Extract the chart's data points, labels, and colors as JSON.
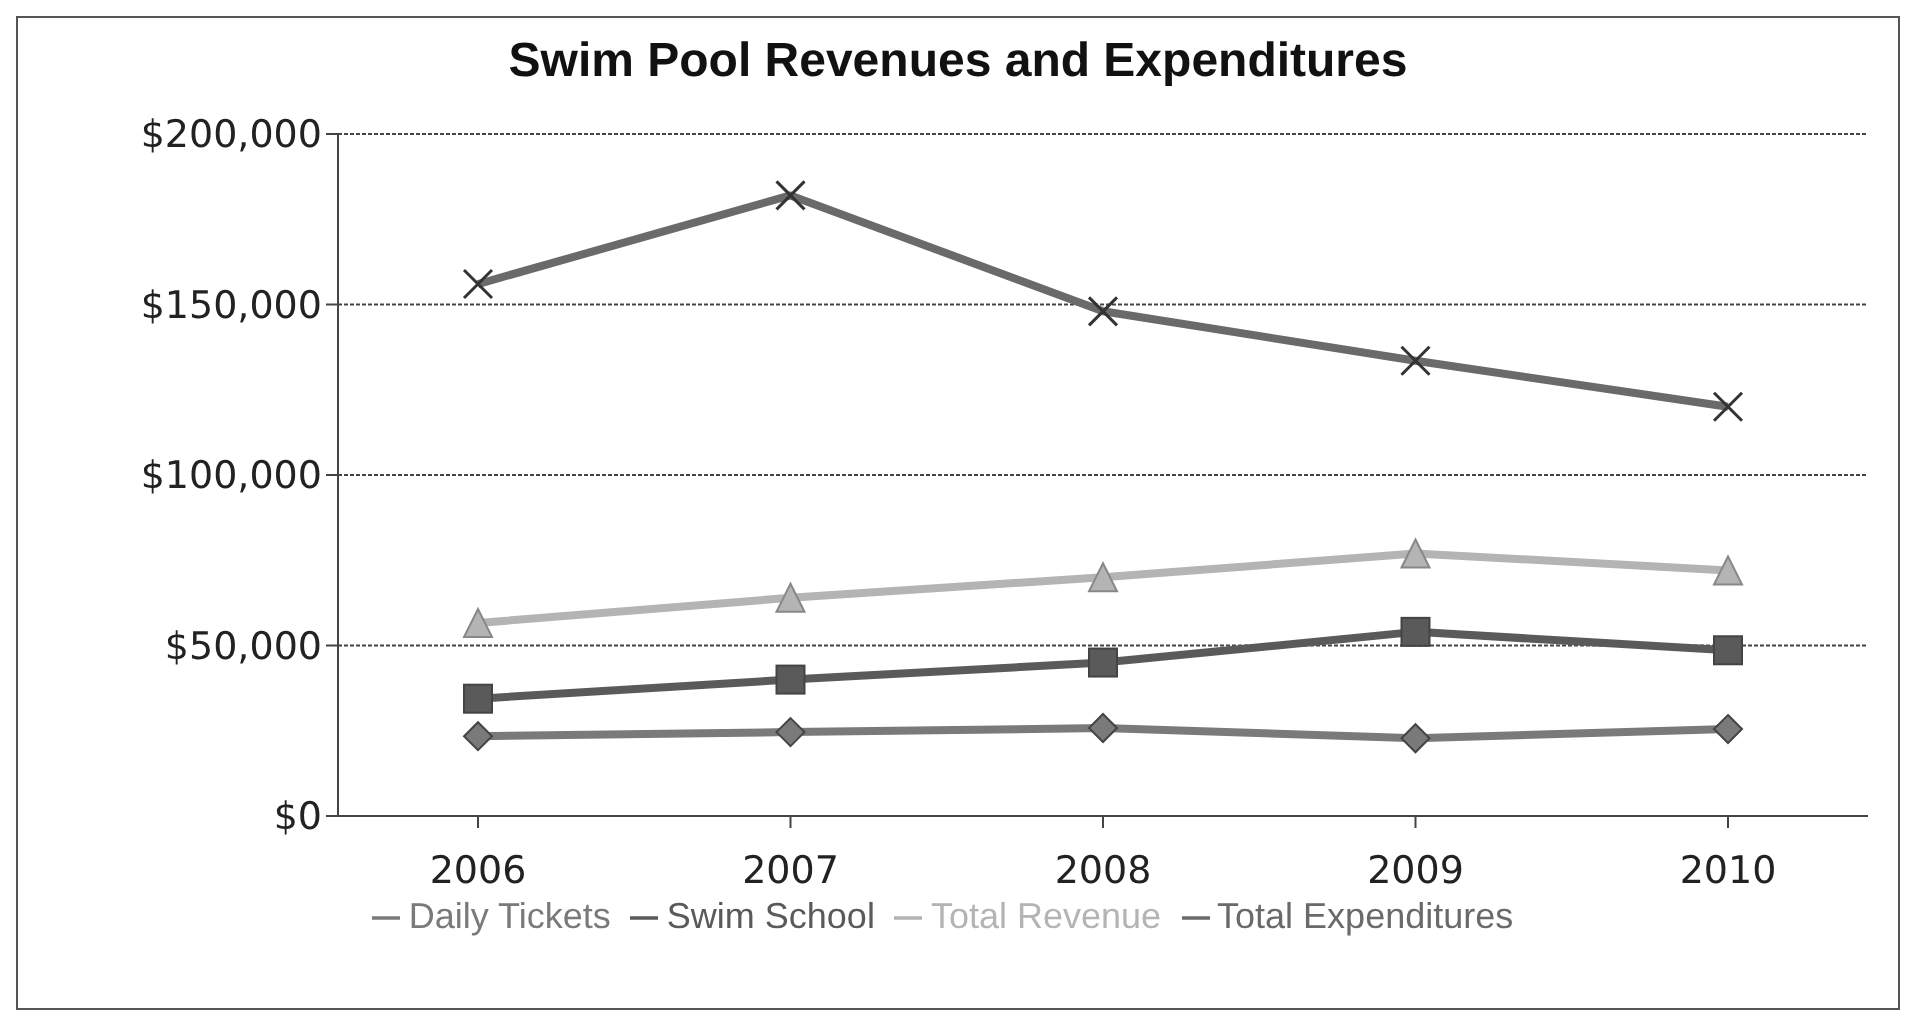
{
  "chart_data": {
    "type": "line",
    "title": "Swim Pool Revenues and Expenditures",
    "categories": [
      "2006",
      "2007",
      "2008",
      "2009",
      "2010"
    ],
    "series": [
      {
        "name": "Daily Tickets",
        "color": "#7a7a7a",
        "marker": "diamond",
        "values": [
          23400,
          24600,
          25800,
          22800,
          25500
        ]
      },
      {
        "name": "Swim School",
        "color": "#5a5a5a",
        "marker": "square",
        "values": [
          34400,
          40000,
          45000,
          54000,
          48600
        ]
      },
      {
        "name": "Total Revenue",
        "color": "#b4b4b4",
        "marker": "triangle",
        "values": [
          56600,
          64000,
          70000,
          77000,
          72000
        ]
      },
      {
        "name": "Total Expenditures",
        "color": "#6a6a6a",
        "marker": "cross",
        "values": [
          156000,
          182000,
          148000,
          133500,
          120000
        ]
      }
    ],
    "ylim": [
      0,
      200000
    ],
    "yticks": [
      {
        "value": 0,
        "label": "$0"
      },
      {
        "value": 50000,
        "label": "$50,000"
      },
      {
        "value": 100000,
        "label": "$100,000"
      },
      {
        "value": 150000,
        "label": "$150,000"
      },
      {
        "value": 200000,
        "label": "$200,000"
      }
    ],
    "grid": "y",
    "legend": "bottom"
  }
}
